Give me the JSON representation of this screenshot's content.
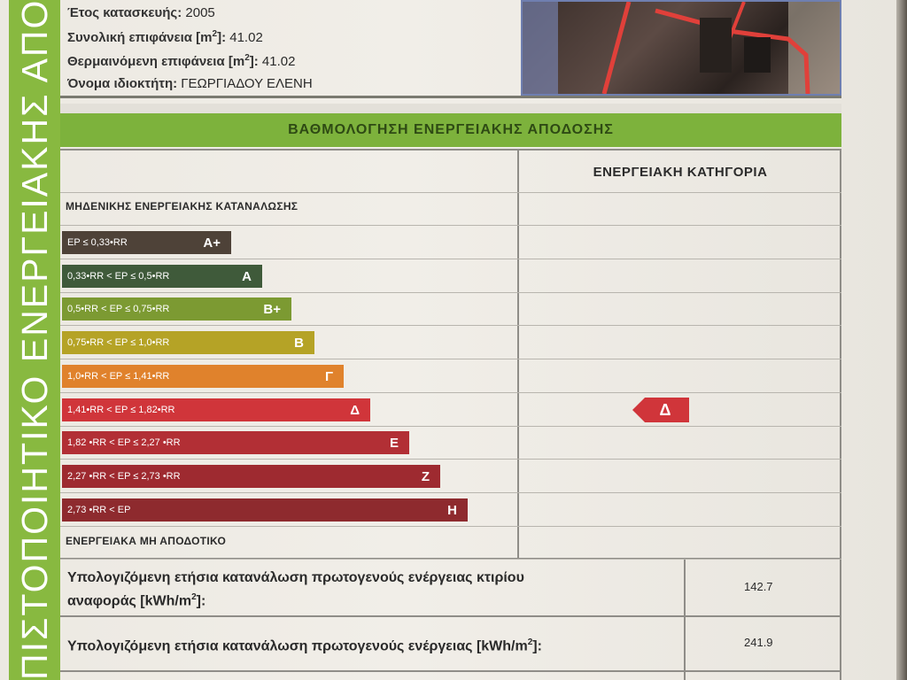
{
  "sidebar": {
    "text": "ΠΙΣΤΟΠΟΙΗΤΙΚΟ ΕΝΕΡΓΕΙΑΚΗΣ ΑΠΟΔΟΣΗΣ"
  },
  "info": {
    "year_label": "Έτος κατασκευής:",
    "year_value": "2005",
    "area_label": "Συνολική επιφάνεια [m",
    "area_sup": "2",
    "area_close": "]:",
    "area_value": "41.02",
    "heated_label": "Θερμαινόμενη επιφάνεια [m",
    "heated_sup": "2",
    "heated_close": "]:",
    "heated_value": "41.02",
    "owner_label": "Όνομα ιδιοκτήτη:",
    "owner_value": "ΓΕΩΡΓΙΑΔΟΥ ΕΛΕΝΗ"
  },
  "section_title": "ΒΑΘΜΟΛΟΓΗΣΗ ΕΝΕΡΓΕΙΑΚΗΣ ΑΠΟΔΟΣΗΣ",
  "category_header": "ΕΝΕΡΓΕΙΑΚΗ ΚΑΤΗΓΟΡΙΑ",
  "top_label": "ΜΗΔΕΝΙΚΗΣ ΕΝΕΡΓΕΙΑΚΗΣ ΚΑΤΑΝΑΛΩΣΗΣ",
  "bottom_label": "ΕΝΕΡΓΕΙΑΚΑ ΜΗ ΑΠΟΔΟΤΙΚΟ",
  "colors": {
    "A+": "#4e4238",
    "A": "#3f5a3a",
    "B+": "#7c9a32",
    "B": "#b5a326",
    "Γ": "#e0822c",
    "Δ": "#d0353a",
    "Ε": "#b22f35",
    "Ζ": "#9e2a30",
    "Η": "#8e2a2e"
  },
  "bars": [
    {
      "range": "EP ≤ 0,33•RR",
      "cls": "A+"
    },
    {
      "range": "0,33•RR < EP ≤ 0,5•RR",
      "cls": "A"
    },
    {
      "range": "0,5•RR < EP ≤ 0,75•RR",
      "cls": "B+"
    },
    {
      "range": "0,75•RR < EP ≤ 1,0•RR",
      "cls": "B"
    },
    {
      "range": "1,0•RR < EP ≤ 1,41•RR",
      "cls": "Γ"
    },
    {
      "range": "1,41•RR < EP ≤ 1,82•RR",
      "cls": "Δ"
    },
    {
      "range": "1,82 •RR < EP ≤ 2,27 •RR",
      "cls": "Ε"
    },
    {
      "range": "2,27 •RR < EP ≤ 2,73 •RR",
      "cls": "Ζ"
    },
    {
      "range": "2,73 •RR < EP",
      "cls": "Η"
    }
  ],
  "current_category": "Δ",
  "reference": {
    "label_line1": "Υπολογιζόμενη ετήσια κατανάλωση πρωτογενούς ενέργειας κτιρίου",
    "label_line2_pre": "αναφοράς [kWh/m",
    "label_line2_sup": "2",
    "label_line2_post": "]:",
    "value": "142.7"
  },
  "calculated": {
    "label_pre": "Υπολογιζόμενη ετήσια κατανάλωση πρωτογενούς ενέργειας [kWh/m",
    "label_sup": "2",
    "label_post": "]:",
    "value": "241.9"
  }
}
